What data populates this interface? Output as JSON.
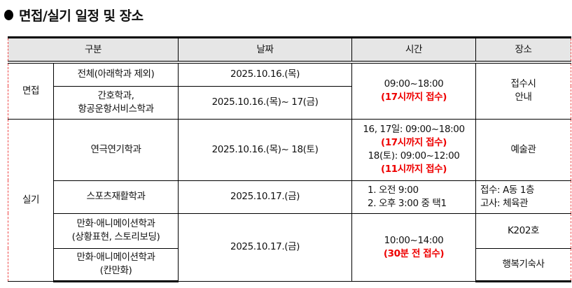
{
  "title": "면접/실기 일정 및 장소",
  "headers": {
    "category": "구분",
    "date": "날짜",
    "time": "시간",
    "place": "장소"
  },
  "interview": {
    "label": "면접",
    "rows": [
      {
        "dept": "전체(아래학과 제외)",
        "date": "2025.10.16.(목)"
      },
      {
        "dept_line1": "간호학과,",
        "dept_line2": "항공운항서비스학과",
        "date": "2025.10.16.(목)~ 17(금)"
      }
    ],
    "time": "09:00~18:00",
    "time_note": "(17시까지 접수)",
    "place_line1": "접수시",
    "place_line2": "안내"
  },
  "practical": {
    "label": "실기",
    "theater": {
      "dept": "연극연기학과",
      "date": "2025.10.16.(목)~ 18(토)",
      "time1": "16, 17일: 09:00~18:00",
      "note1": "(17시까지 접수)",
      "time2": "18(토): 09:00~12:00",
      "note2": "(11시까지 접수)",
      "place": "예술관"
    },
    "sports": {
      "dept": "스포츠재활학과",
      "date": "2025.10.17.(금)",
      "time1": "1. 오전 9:00",
      "time2": "2. 오후 3:00 중 택1",
      "place1": "접수: A동 1층",
      "place2": "고사: 체육관"
    },
    "anim1": {
      "dept_line1": "만화·애니메이션학과",
      "dept_line2": "(상황표현, 스토리보딩)",
      "place": "K202호"
    },
    "anim2": {
      "dept_line1": "만화·애니메이션학과",
      "dept_line2": "(칸만화)",
      "place": "행복기숙사"
    },
    "anim_date": "2025.10.17.(금)",
    "anim_time": "10:00~14:00",
    "anim_note": "(30분 전 접수)"
  },
  "colors": {
    "accent_red": "#e00000",
    "header_bg": "#e6e6e6"
  }
}
